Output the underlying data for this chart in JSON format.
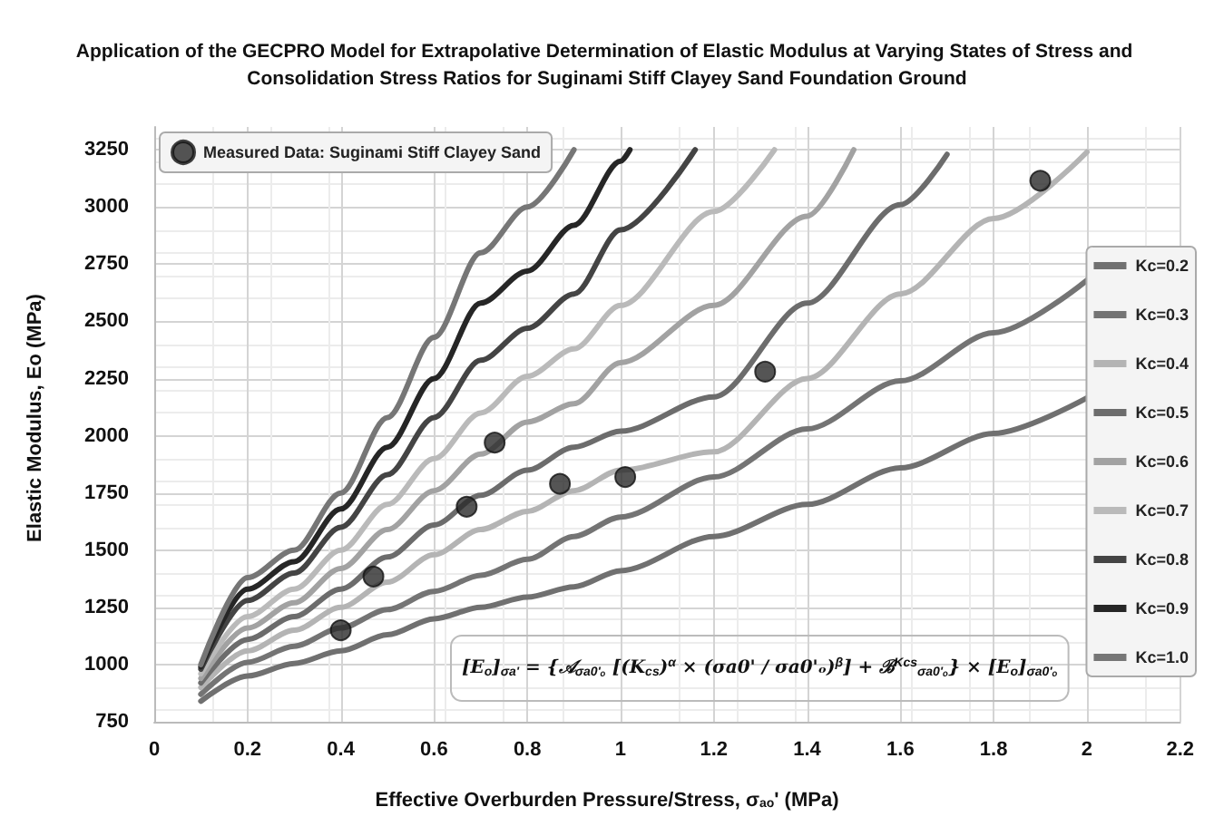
{
  "chart_data": {
    "type": "line",
    "title": "Application of the GECPRO Model for Extrapolative Determination of Elastic Modulus at Varying States of Stress and Consolidation Stress Ratios for Suginami Stiff Clayey Sand Foundation Ground",
    "xlabel": "Effective Overburden Pressure/Stress, σ$_{ao}$' (MPa)",
    "ylabel": "Elastic Modulus, Eo (MPa)",
    "xlim": [
      0,
      2.2
    ],
    "xticks": [
      0,
      0.2,
      0.4,
      0.6,
      0.8,
      1,
      1.2,
      1.4,
      1.6,
      1.8,
      2,
      2.2
    ],
    "ylim": [
      750,
      3350
    ],
    "yticks": [
      750,
      1000,
      1250,
      1500,
      1750,
      2000,
      2250,
      2500,
      2750,
      3000,
      3250
    ],
    "grid": true,
    "legend": "right",
    "line_style": "solid",
    "annotations": [
      "[E$_{o}$]$_{σa'}$ = {𝒜$_{σa0'ₒ}$ [(K$_{cs}$)$^{α}$ × (σa0' / σa0'ₒ)$^{β}$] + ℬ$^{Kcs}$$_{σa0'ₒ}$} × [E$_{o}$]$_{σa0'ₒ}$"
    ],
    "series": [
      {
        "name": "Measured Data: Suginami Stiff Clayey Sand",
        "type": "scatter",
        "marker": "circle",
        "color": "#2b2b2b",
        "x": [
          0.4,
          0.47,
          0.67,
          0.73,
          0.87,
          1.01,
          1.31,
          1.9
        ],
        "values": [
          1150,
          1385,
          1690,
          1970,
          1790,
          1820,
          2280,
          3115
        ]
      },
      {
        "name": "Kc=0.2",
        "color": "#707070",
        "x": [
          0.1,
          0.2,
          0.3,
          0.4,
          0.5,
          0.6,
          0.7,
          0.8,
          0.9,
          1.0,
          1.2,
          1.4,
          1.6,
          1.8,
          2.0
        ],
        "values": [
          840,
          950,
          1005,
          1060,
          1130,
          1200,
          1250,
          1295,
          1340,
          1410,
          1560,
          1700,
          1860,
          2010,
          2165
        ]
      },
      {
        "name": "Kc=0.3",
        "color": "#747474",
        "x": [
          0.1,
          0.2,
          0.3,
          0.4,
          0.5,
          0.6,
          0.7,
          0.8,
          0.9,
          1.0,
          1.2,
          1.4,
          1.6,
          1.8,
          2.0
        ],
        "values": [
          870,
          1010,
          1080,
          1160,
          1240,
          1320,
          1390,
          1460,
          1560,
          1645,
          1820,
          2030,
          2240,
          2450,
          2680
        ]
      },
      {
        "name": "Kc=0.4",
        "color": "#b4b4b4",
        "x": [
          0.1,
          0.2,
          0.3,
          0.4,
          0.5,
          0.6,
          0.7,
          0.8,
          0.9,
          1.0,
          1.2,
          1.4,
          1.6,
          1.8,
          2.0
        ],
        "values": [
          900,
          1060,
          1150,
          1250,
          1360,
          1480,
          1590,
          1670,
          1760,
          1850,
          1930,
          2250,
          2620,
          2950,
          3240
        ]
      },
      {
        "name": "Kc=0.5",
        "color": "#6c6c6c",
        "x": [
          0.1,
          0.2,
          0.3,
          0.4,
          0.5,
          0.6,
          0.7,
          0.8,
          0.9,
          1.0,
          1.2,
          1.4,
          1.6,
          1.7
        ],
        "values": [
          920,
          1110,
          1210,
          1330,
          1470,
          1610,
          1740,
          1850,
          1950,
          2020,
          2170,
          2580,
          3010,
          3230
        ]
      },
      {
        "name": "Kc=0.6",
        "color": "#a2a2a2",
        "x": [
          0.1,
          0.2,
          0.3,
          0.4,
          0.5,
          0.6,
          0.7,
          0.8,
          0.9,
          1.0,
          1.2,
          1.4,
          1.5
        ],
        "values": [
          940,
          1160,
          1270,
          1420,
          1590,
          1760,
          1920,
          2060,
          2140,
          2320,
          2570,
          2960,
          3250
        ]
      },
      {
        "name": "Kc=0.7",
        "color": "#bababa",
        "x": [
          0.1,
          0.2,
          0.3,
          0.4,
          0.5,
          0.6,
          0.7,
          0.8,
          0.9,
          1.0,
          1.2,
          1.33
        ],
        "values": [
          960,
          1210,
          1330,
          1500,
          1700,
          1900,
          2100,
          2260,
          2380,
          2570,
          2980,
          3250
        ]
      },
      {
        "name": "Kc=0.8",
        "color": "#444444",
        "x": [
          0.1,
          0.2,
          0.3,
          0.4,
          0.5,
          0.6,
          0.7,
          0.8,
          0.9,
          1.0,
          1.16
        ],
        "values": [
          980,
          1280,
          1400,
          1600,
          1830,
          2080,
          2330,
          2470,
          2620,
          2900,
          3250
        ]
      },
      {
        "name": "Kc=0.9",
        "color": "#262626",
        "x": [
          0.1,
          0.2,
          0.3,
          0.4,
          0.5,
          0.6,
          0.7,
          0.8,
          0.9,
          1.0,
          1.02
        ],
        "values": [
          990,
          1330,
          1450,
          1680,
          1950,
          2250,
          2580,
          2720,
          2920,
          3200,
          3250
        ]
      },
      {
        "name": "Kc=1.0",
        "color": "#767676",
        "x": [
          0.1,
          0.2,
          0.3,
          0.4,
          0.5,
          0.6,
          0.7,
          0.8,
          0.9
        ],
        "values": [
          1000,
          1380,
          1500,
          1750,
          2080,
          2430,
          2800,
          3000,
          3250
        ]
      }
    ]
  }
}
